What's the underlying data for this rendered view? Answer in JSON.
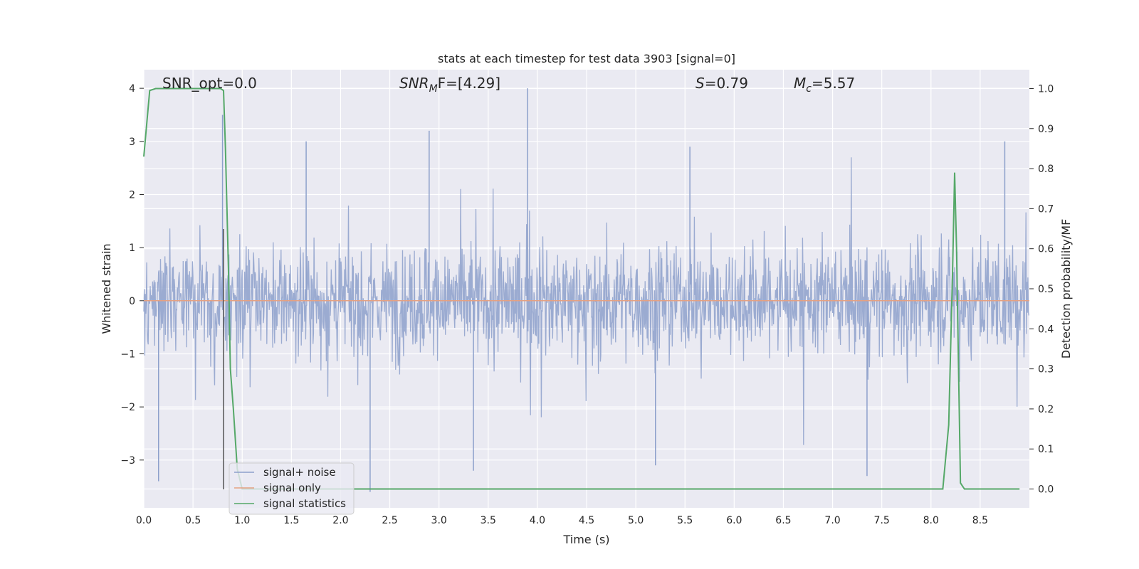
{
  "chart_data": {
    "type": "line",
    "title": "stats at each timestep for test data 3903 [signal=0]",
    "xlabel": "Time (s)",
    "ylabel": "Whitened strain",
    "y2label": "Detection probability/MF",
    "xlim": [
      0.0,
      9.0
    ],
    "ylim": [
      -3.9,
      4.35
    ],
    "y2lim": [
      -0.047,
      1.047
    ],
    "xticks": [
      "0.0",
      "0.5",
      "1.0",
      "1.5",
      "2.0",
      "2.5",
      "3.0",
      "3.5",
      "4.0",
      "4.5",
      "5.0",
      "5.5",
      "6.0",
      "6.5",
      "7.0",
      "7.5",
      "8.0",
      "8.5"
    ],
    "yticks": [
      "4",
      "3",
      "2",
      "1",
      "0",
      "−1",
      "−2",
      "−3"
    ],
    "y2ticks": [
      "1.0",
      "0.9",
      "0.8",
      "0.7",
      "0.6",
      "0.5",
      "0.4",
      "0.3",
      "0.2",
      "0.1",
      "0.0"
    ],
    "grid": true,
    "legend_position": "lower-left",
    "annotations": {
      "snr_opt": "SNR_opt=0.0",
      "snr_mf_base": "SNR",
      "snr_mf_sub": "M",
      "snr_mf_tail": "F=[4.29]",
      "s_stat": "=0.79",
      "s_var": "S",
      "mc_base": "M",
      "mc_sub": "c",
      "mc_tail": "=5.57"
    },
    "marker_time": 0.81,
    "series": [
      {
        "name": "signal+ noise",
        "color": "#8da0cb",
        "description": "dense whitened strain noise, mostly within ±1.5, spikes up to ~4.0 at t≈3.9 and down to ~−3.6 at t≈2.3",
        "peaks": [
          [
            0.15,
            -3.4
          ],
          [
            0.8,
            3.5
          ],
          [
            1.65,
            3.0
          ],
          [
            2.3,
            -3.6
          ],
          [
            2.9,
            3.2
          ],
          [
            3.35,
            -3.2
          ],
          [
            3.9,
            4.0
          ],
          [
            5.2,
            -3.1
          ],
          [
            5.55,
            2.9
          ],
          [
            7.35,
            -3.3
          ],
          [
            8.75,
            3.0
          ]
        ]
      },
      {
        "name": "signal only",
        "color": "#e5a182",
        "x": [
          0.0,
          9.0
        ],
        "y": [
          0.0,
          0.0
        ]
      },
      {
        "name": "signal statistics",
        "color": "#55a868",
        "axis": "right",
        "x": [
          0.0,
          0.06,
          0.12,
          0.2,
          0.5,
          0.78,
          0.81,
          0.83,
          0.86,
          0.88,
          0.91,
          0.95,
          1.0,
          8.0,
          8.12,
          8.18,
          8.22,
          8.24,
          8.26,
          8.3,
          8.34,
          8.38,
          8.9
        ],
        "y": [
          0.83,
          0.995,
          1.0,
          1.0,
          1.0,
          1.0,
          0.995,
          0.85,
          0.55,
          0.3,
          0.2,
          0.05,
          0.0,
          0.0,
          0.0,
          0.16,
          0.55,
          0.79,
          0.6,
          0.015,
          0.0,
          0.0,
          0.0
        ]
      }
    ]
  }
}
